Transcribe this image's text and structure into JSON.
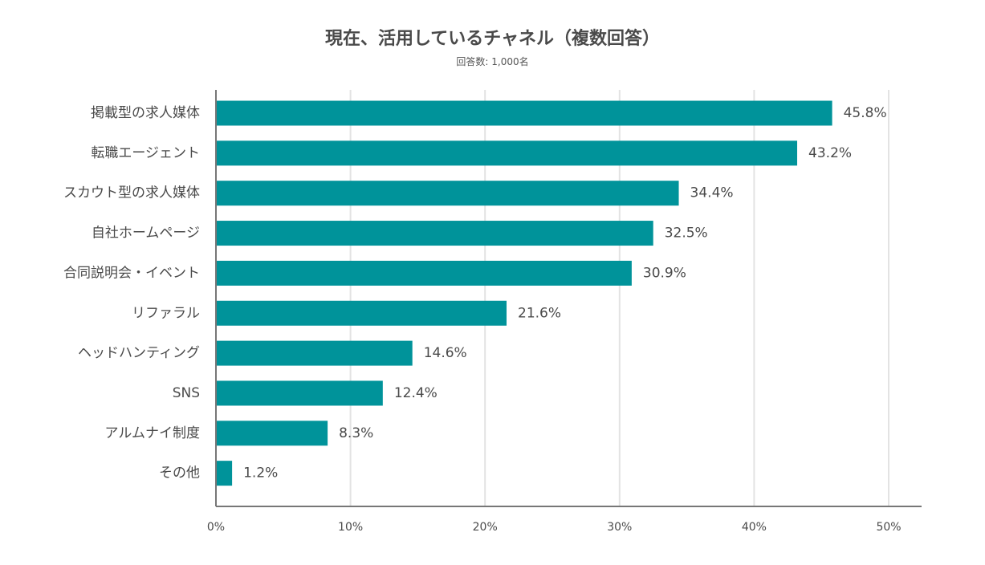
{
  "chart_data": {
    "type": "bar",
    "orientation": "horizontal",
    "title": "現在、活用しているチャネル（複数回答）",
    "subtitle": "回答数: 1,000名",
    "categories": [
      "掲載型の求人媒体",
      "転職エージェント",
      "スカウト型の求人媒体",
      "自社ホームページ",
      "合同説明会・イベント",
      "リファラル",
      "ヘッドハンティング",
      "SNS",
      "アルムナイ制度",
      "その他"
    ],
    "values": [
      45.8,
      43.2,
      34.4,
      32.5,
      30.9,
      21.6,
      14.6,
      12.4,
      8.3,
      1.2
    ],
    "value_labels": [
      "45.8%",
      "43.2%",
      "34.4%",
      "32.5%",
      "30.9%",
      "21.6%",
      "14.6%",
      "12.4%",
      "8.3%",
      "1.2%"
    ],
    "xlim": [
      0,
      50
    ],
    "x_ticks": [
      0,
      10,
      20,
      30,
      40,
      50
    ],
    "x_tick_labels": [
      "0%",
      "10%",
      "20%",
      "30%",
      "40%",
      "50%"
    ],
    "grid": true,
    "legend": "none",
    "bar_color": "#00939a",
    "grid_color": "#e3e3e3",
    "axis_color": "#777777"
  }
}
